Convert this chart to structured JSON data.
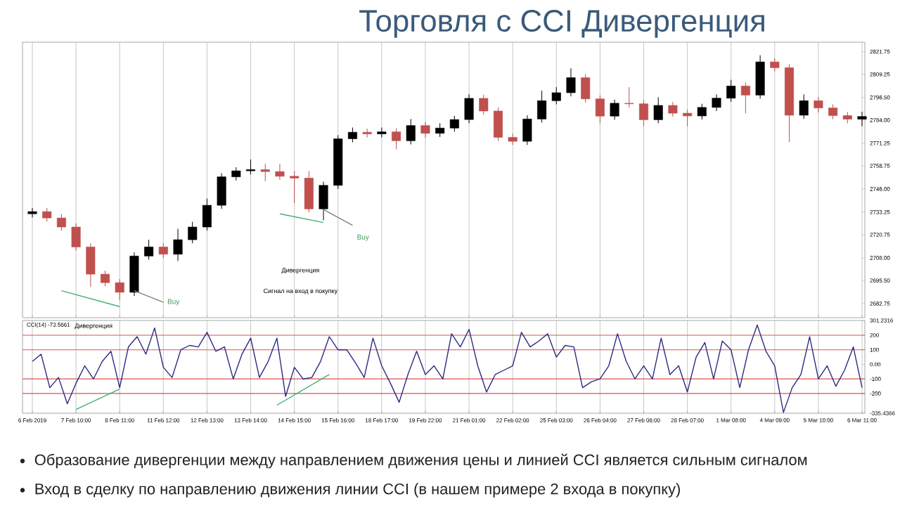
{
  "chart_data": [
    {
      "type": "candlestick",
      "title": "Торговля с CCI Дивергенция",
      "categories": [
        null,
        null,
        null,
        null,
        null,
        null,
        null,
        null,
        null,
        null,
        null,
        null,
        null,
        null,
        null,
        null,
        null,
        null,
        null,
        null,
        null,
        null,
        null,
        null,
        null,
        null,
        null,
        null,
        null,
        null,
        null,
        null,
        null,
        null,
        null,
        null,
        null,
        null,
        null,
        null,
        null,
        null,
        null,
        null,
        null,
        null,
        null,
        null,
        null,
        null,
        null,
        null,
        null,
        null,
        null,
        null,
        null,
        null
      ],
      "ohlc": [
        [
          2732.3,
          2735.5,
          2730.3,
          2733.5
        ],
        [
          2733.5,
          2735.5,
          2728,
          2730
        ],
        [
          2730,
          2732,
          2723,
          2725
        ],
        [
          2725,
          2727,
          2712,
          2714
        ],
        [
          2714,
          2716,
          2691.9,
          2699
        ],
        [
          2699,
          2701,
          2692.3,
          2694.3
        ],
        [
          2694.3,
          2696.3,
          2684.7,
          2689
        ],
        [
          2689,
          2711,
          2687,
          2709
        ],
        [
          2709,
          2718,
          2707,
          2714
        ],
        [
          2714,
          2716,
          2708,
          2710
        ],
        [
          2710,
          2724,
          2706.3,
          2718
        ],
        [
          2718,
          2727.9,
          2716,
          2725
        ],
        [
          2725,
          2740.7,
          2723,
          2737
        ],
        [
          2737,
          2754.7,
          2735,
          2752.7
        ],
        [
          2752.7,
          2758,
          2750.7,
          2756
        ],
        [
          2756,
          2762.3,
          2754,
          2756.7
        ],
        [
          2756.7,
          2759.9,
          2750.3,
          2755.6
        ],
        [
          2755.6,
          2759.9,
          2751,
          2753
        ],
        [
          2753,
          2755.9,
          2738.3,
          2752
        ],
        [
          2752,
          2755.9,
          2733,
          2735
        ],
        [
          2735,
          2750,
          2728.7,
          2748
        ],
        [
          2748,
          2775.7,
          2746,
          2773.7
        ],
        [
          2773.7,
          2779.9,
          2771.7,
          2777.3
        ],
        [
          2777.3,
          2779.3,
          2774.4,
          2776.4
        ],
        [
          2776.4,
          2779.9,
          2774.4,
          2777.5
        ],
        [
          2777.5,
          2779.5,
          2767.9,
          2772.6
        ],
        [
          2772.6,
          2784.6,
          2770.6,
          2781
        ],
        [
          2781,
          2783,
          2774.3,
          2776.7
        ],
        [
          2776.7,
          2782.3,
          2774.7,
          2779.6
        ],
        [
          2779.6,
          2786.3,
          2777.6,
          2784.3
        ],
        [
          2784.3,
          2798.2,
          2782.3,
          2796
        ],
        [
          2796,
          2798,
          2787,
          2789
        ],
        [
          2789,
          2791,
          2772.5,
          2774.5
        ],
        [
          2774.5,
          2776.5,
          2770.3,
          2772.3
        ],
        [
          2772.3,
          2786.6,
          2770.3,
          2784.6
        ],
        [
          2784.6,
          2800.2,
          2782.6,
          2794.7
        ],
        [
          2794.7,
          2802.2,
          2792.7,
          2799.1
        ],
        [
          2799.1,
          2812.6,
          2797.1,
          2807.4
        ],
        [
          2807.4,
          2809.4,
          2793.7,
          2795.7
        ],
        [
          2795.7,
          2797.7,
          2782.2,
          2786.2
        ],
        [
          2786.2,
          2795.3,
          2784.2,
          2793.3
        ],
        [
          2793.3,
          2802.2,
          2791,
          2793
        ],
        [
          2793,
          2795,
          2780.6,
          2784.2
        ],
        [
          2784.2,
          2796.6,
          2782.2,
          2792.1
        ],
        [
          2792.1,
          2794.1,
          2785.8,
          2787.8
        ],
        [
          2787.8,
          2789.8,
          2780.6,
          2786.3
        ],
        [
          2786.3,
          2793,
          2784.3,
          2791
        ],
        [
          2791,
          2798.2,
          2789,
          2796.1
        ],
        [
          2796.1,
          2806.2,
          2794.1,
          2802.8
        ],
        [
          2802.8,
          2804.8,
          2787.8,
          2797.8
        ],
        [
          2797.8,
          2819.8,
          2795.8,
          2816.1
        ],
        [
          2816.1,
          2818.1,
          2810.9,
          2812.9
        ],
        [
          2812.9,
          2814.9,
          2771.9,
          2786.7
        ],
        [
          2786.7,
          2798.2,
          2784.7,
          2794.7
        ],
        [
          2794.7,
          2796.7,
          2788.2,
          2790.7
        ],
        [
          2790.7,
          2792.7,
          2784.5,
          2786.5
        ],
        [
          2786.5,
          2788.5,
          2782.2,
          2784.5
        ],
        [
          2784.5,
          2788.6,
          2780.6,
          2786
        ]
      ],
      "colors": [
        "#000000",
        "#c0504d",
        "#c0504d",
        "#c0504d",
        "#c0504d",
        "#c0504d",
        "#c0504d",
        "#000000",
        "#000000",
        "#c0504d",
        "#000000",
        "#000000",
        "#000000",
        "#000000",
        "#000000",
        "#000000",
        "#c0504d",
        "#c0504d",
        "#c0504d",
        "#c0504d",
        "#000000",
        "#000000",
        "#000000",
        "#c0504d",
        "#000000",
        "#c0504d",
        "#000000",
        "#c0504d",
        "#000000",
        "#000000",
        "#000000",
        "#c0504d",
        "#c0504d",
        "#c0504d",
        "#000000",
        "#000000",
        "#000000",
        "#000000",
        "#c0504d",
        "#c0504d",
        "#000000",
        "#c0504d",
        "#c0504d",
        "#000000",
        "#c0504d",
        "#c0504d",
        "#000000",
        "#000000",
        "#000000",
        "#c0504d",
        "#000000",
        "#c0504d",
        "#c0504d",
        "#000000",
        "#c0504d",
        "#c0504d",
        "#c0504d",
        "#000000"
      ],
      "series": [
        {
          "type": "line",
          "values": [
            null,
            null,
            2689.9,
            null,
            null,
            null,
            2681.1,
            null,
            null,
            null,
            null,
            null,
            null,
            null,
            null,
            null,
            null,
            null,
            null,
            null,
            null,
            null,
            null,
            null,
            null,
            null,
            null,
            null,
            null,
            null,
            null,
            null,
            null,
            null,
            null,
            null,
            null,
            null,
            null,
            null,
            null,
            null,
            null,
            null,
            null,
            null,
            null,
            null,
            null,
            null,
            null,
            null,
            null,
            null,
            null,
            null,
            null,
            null
          ],
          "color": "#3cb371"
        },
        {
          "type": "line",
          "values": [
            null,
            null,
            null,
            null,
            null,
            null,
            null,
            null,
            null,
            null,
            null,
            null,
            null,
            null,
            null,
            null,
            null,
            2732.3,
            null,
            null,
            2727.5,
            null,
            null,
            null,
            null,
            null,
            null,
            null,
            null,
            null,
            null,
            null,
            null,
            null,
            null,
            null,
            null,
            null,
            null,
            null,
            null,
            null,
            null,
            null,
            null,
            null,
            null,
            null,
            null,
            null,
            null,
            null,
            null,
            null,
            null,
            null,
            null,
            null
          ],
          "color": "#3cb371"
        },
        {
          "type": "line",
          "values": [
            null,
            null,
            null,
            null,
            null,
            null,
            null,
            2689.9,
            null,
            2683.5,
            null,
            null,
            null,
            null,
            null,
            null,
            null,
            null,
            null,
            null,
            null,
            null,
            null,
            null,
            null,
            null,
            null,
            null,
            null,
            null,
            null,
            null,
            null,
            null,
            null,
            null,
            null,
            null,
            null,
            null,
            null,
            null,
            null,
            null,
            null,
            null,
            null,
            null,
            null,
            null,
            null,
            null,
            null,
            null,
            null,
            null,
            null,
            null
          ],
          "color": "#808080"
        },
        {
          "type": "line",
          "values": [
            null,
            null,
            null,
            null,
            null,
            null,
            null,
            null,
            null,
            null,
            null,
            null,
            null,
            null,
            null,
            null,
            null,
            null,
            null,
            null,
            2734.7,
            null,
            2725.9,
            null,
            null,
            null,
            null,
            null,
            null,
            null,
            null,
            null,
            null,
            null,
            null,
            null,
            null,
            null,
            null,
            null,
            null,
            null,
            null,
            null,
            null,
            null,
            null,
            null,
            null,
            null,
            null,
            null,
            null,
            null,
            null,
            null,
            null,
            null
          ],
          "color": "#808080"
        }
      ],
      "annotations": [
        "Buy",
        "Buy",
        "Дивергенция",
        "Сигнал на вход в покупку"
      ],
      "ylim": [
        2675,
        2827
      ],
      "yticks": [
        2821.75,
        2809.25,
        {
          "value": 2796.5,
          "label": "2796.50"
        },
        {
          "value": 2784,
          "label": "2784.00"
        },
        2771.25,
        2758.75,
        {
          "value": 2746,
          "label": "2746.00"
        },
        2733.25,
        2720.75,
        {
          "value": 2708,
          "label": "2708.00"
        },
        {
          "value": 2695.5,
          "label": "2695.50"
        },
        2682.75
      ],
      "grid": "x",
      "tick_labels": "y"
    },
    {
      "type": "line",
      "categories": [
        "6 Feb 2019",
        null,
        null,
        null,
        null,
        "7 Feb 10:00",
        null,
        null,
        null,
        null,
        "8 Feb 11:00",
        null,
        null,
        null,
        null,
        "11 Feb 12:00",
        null,
        null,
        null,
        null,
        "12 Feb 13:00",
        null,
        null,
        null,
        null,
        "13 Feb 14:00",
        null,
        null,
        null,
        null,
        "14 Feb 15:00",
        null,
        null,
        null,
        null,
        "15 Feb 16:00",
        null,
        null,
        null,
        null,
        "18 Feb 17:00",
        null,
        null,
        null,
        null,
        "19 Feb 22:00",
        null,
        null,
        null,
        null,
        "21 Feb 01:00",
        null,
        null,
        null,
        null,
        "22 Feb 02:00",
        null,
        null,
        null,
        null,
        "25 Feb 03:00",
        null,
        null,
        null,
        null,
        "26 Feb 04:00",
        null,
        null,
        null,
        null,
        "27 Feb 06:00",
        null,
        null,
        null,
        null,
        "28 Feb 07:00",
        null,
        null,
        null,
        null,
        "1 Mar 08:00",
        null,
        null,
        null,
        null,
        "4 Mar 09:00",
        null,
        null,
        null,
        null,
        "5 Mar 10:00",
        null,
        null,
        null,
        null,
        "6 Mar 11:00"
      ],
      "series": [
        {
          "values": [
            20,
            70,
            -160,
            -90,
            -270,
            -130,
            -10,
            -100,
            20,
            90,
            -160,
            120,
            190,
            70,
            250,
            -20,
            -90,
            100,
            130,
            120,
            220,
            90,
            120,
            -100,
            70,
            180,
            -90,
            20,
            180,
            -220,
            -20,
            -100,
            -90,
            20,
            190,
            100,
            100,
            10,
            -90,
            180,
            -10,
            -130,
            -260,
            -70,
            90,
            -70,
            -10,
            -100,
            210,
            120,
            240,
            -10,
            -190,
            -70,
            -40,
            -10,
            220,
            120,
            160,
            210,
            50,
            130,
            120,
            -160,
            -120,
            -100,
            -10,
            210,
            20,
            -100,
            -10,
            -100,
            180,
            -70,
            -10,
            -190,
            50,
            150,
            -100,
            160,
            100,
            -160,
            100,
            270,
            90,
            -10,
            -330,
            -160,
            -70,
            190,
            -100,
            -10,
            -150,
            -40,
            120,
            -160
          ],
          "color": "#2b2b80"
        },
        {
          "values": [
            null,
            null,
            null,
            null,
            null,
            -310,
            null,
            null,
            null,
            null,
            -170,
            null,
            null,
            null,
            null,
            null,
            null,
            null,
            null,
            null,
            null,
            null,
            null,
            null,
            null,
            null,
            null,
            null,
            null,
            null,
            null,
            null,
            null,
            null,
            null,
            null,
            null,
            null,
            null,
            null,
            null,
            null,
            null,
            null,
            null,
            null,
            null,
            null,
            null,
            null,
            null,
            null,
            null,
            null,
            null,
            null,
            null,
            null,
            null,
            null,
            null,
            null,
            null,
            null,
            null,
            null,
            null,
            null,
            null,
            null,
            null,
            null,
            null,
            null,
            null,
            null,
            null,
            null,
            null,
            null,
            null,
            null,
            null,
            null,
            null,
            null,
            null,
            null,
            null,
            null,
            null,
            null,
            null,
            null,
            null,
            null
          ],
          "color": "#3cb371"
        },
        {
          "values": [
            null,
            null,
            null,
            null,
            null,
            null,
            null,
            null,
            null,
            null,
            null,
            null,
            null,
            null,
            null,
            null,
            null,
            null,
            null,
            null,
            null,
            null,
            null,
            null,
            null,
            null,
            null,
            null,
            -280,
            null,
            null,
            null,
            null,
            null,
            -70,
            null,
            null,
            null,
            null,
            null,
            null,
            null,
            null,
            null,
            null,
            null,
            null,
            null,
            null,
            null,
            null,
            null,
            null,
            null,
            null,
            null,
            null,
            null,
            null,
            null,
            null,
            null,
            null,
            null,
            null,
            null,
            null,
            null,
            null,
            null,
            null,
            null,
            null,
            null,
            null,
            null,
            null,
            null,
            null,
            null,
            null,
            null,
            null,
            null,
            null,
            null,
            null,
            null,
            null,
            null,
            null,
            null,
            null,
            null,
            null,
            null
          ],
          "color": "#3cb371"
        }
      ],
      "ref_lines": [
        {
          "axis": "y",
          "value": 200,
          "color": "#d9534f"
        },
        {
          "axis": "y",
          "value": 100,
          "color": "#d9534f"
        },
        {
          "axis": "y",
          "value": -100,
          "color": "#d9534f"
        },
        {
          "axis": "y",
          "value": -200,
          "color": "#d9534f"
        }
      ],
      "annotations": [
        "CCI(14) -73.5661",
        "Дивергенция",
        "Образование дивергенции между направлением движения цены и линией CCI является сильным сигналом",
        "Вход в сделку по направлению движения линии CCI (в нашем примере 2 входа в покупку)"
      ],
      "ylim": [
        -335.4366,
        301.2316
      ],
      "yticks": [
        301.2316,
        200,
        100,
        {
          "value": 0,
          "label": "0.00"
        },
        -100,
        -200,
        -335.4366
      ],
      "grid": "x"
    }
  ]
}
